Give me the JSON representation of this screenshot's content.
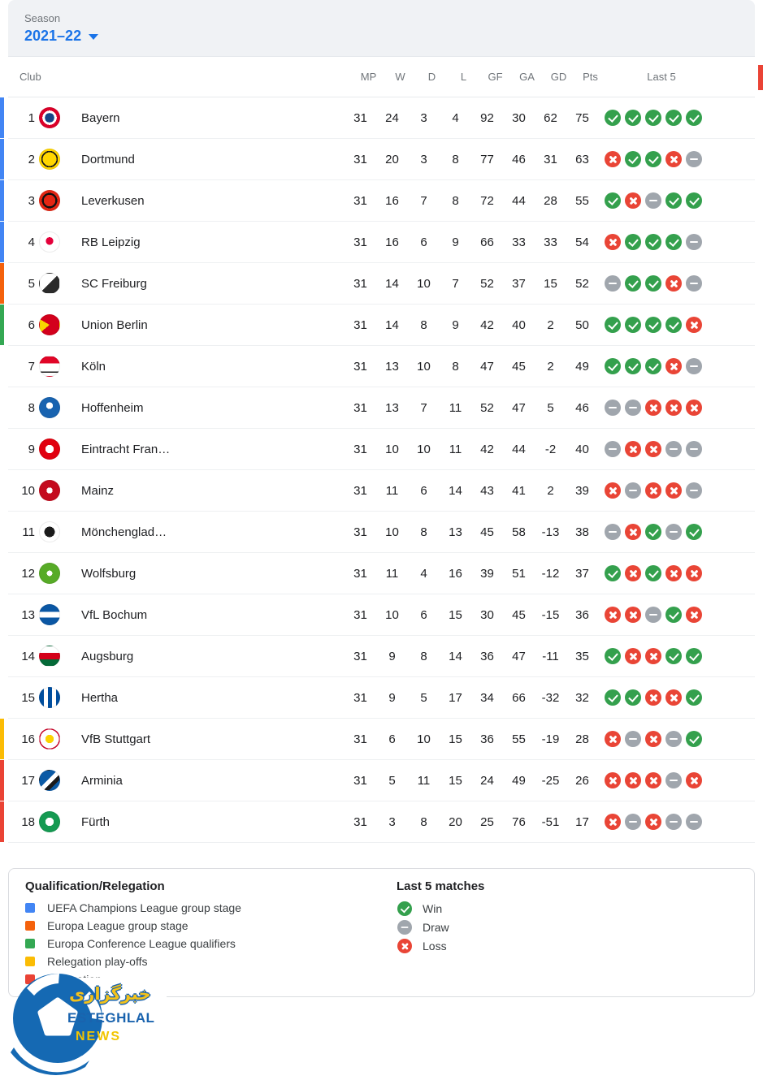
{
  "season": {
    "label": "Season",
    "value": "2021–22"
  },
  "table": {
    "columns": {
      "club": "Club",
      "mp": "MP",
      "w": "W",
      "d": "D",
      "l": "L",
      "gf": "GF",
      "ga": "GA",
      "gd": "GD",
      "pts": "Pts",
      "last5": "Last 5"
    },
    "rows": [
      {
        "rank": "1",
        "club": "Bayern",
        "logo": "bayern",
        "indicator": "ucl",
        "mp": "31",
        "w": "24",
        "d": "3",
        "l": "4",
        "gf": "92",
        "ga": "30",
        "gd": "62",
        "pts": "75",
        "last5": [
          "win",
          "win",
          "win",
          "win",
          "win"
        ]
      },
      {
        "rank": "2",
        "club": "Dortmund",
        "logo": "dortmund",
        "indicator": "ucl",
        "mp": "31",
        "w": "20",
        "d": "3",
        "l": "8",
        "gf": "77",
        "ga": "46",
        "gd": "31",
        "pts": "63",
        "last5": [
          "loss",
          "win",
          "win",
          "loss",
          "draw"
        ]
      },
      {
        "rank": "3",
        "club": "Leverkusen",
        "logo": "leverkusen",
        "indicator": "ucl",
        "mp": "31",
        "w": "16",
        "d": "7",
        "l": "8",
        "gf": "72",
        "ga": "44",
        "gd": "28",
        "pts": "55",
        "last5": [
          "win",
          "loss",
          "draw",
          "win",
          "win"
        ]
      },
      {
        "rank": "4",
        "club": "RB Leipzig",
        "logo": "leipzig",
        "indicator": "ucl",
        "mp": "31",
        "w": "16",
        "d": "6",
        "l": "9",
        "gf": "66",
        "ga": "33",
        "gd": "33",
        "pts": "54",
        "last5": [
          "loss",
          "win",
          "win",
          "win",
          "draw"
        ]
      },
      {
        "rank": "5",
        "club": "SC Freiburg",
        "logo": "freiburg",
        "indicator": "uel",
        "mp": "31",
        "w": "14",
        "d": "10",
        "l": "7",
        "gf": "52",
        "ga": "37",
        "gd": "15",
        "pts": "52",
        "last5": [
          "draw",
          "win",
          "win",
          "loss",
          "draw"
        ]
      },
      {
        "rank": "6",
        "club": "Union Berlin",
        "logo": "union",
        "indicator": "uecl",
        "mp": "31",
        "w": "14",
        "d": "8",
        "l": "9",
        "gf": "42",
        "ga": "40",
        "gd": "2",
        "pts": "50",
        "last5": [
          "win",
          "win",
          "win",
          "win",
          "loss"
        ]
      },
      {
        "rank": "7",
        "club": "Köln",
        "logo": "koln",
        "indicator": "none",
        "mp": "31",
        "w": "13",
        "d": "10",
        "l": "8",
        "gf": "47",
        "ga": "45",
        "gd": "2",
        "pts": "49",
        "last5": [
          "win",
          "win",
          "win",
          "loss",
          "draw"
        ]
      },
      {
        "rank": "8",
        "club": "Hoffenheim",
        "logo": "hoffenheim",
        "indicator": "none",
        "mp": "31",
        "w": "13",
        "d": "7",
        "l": "11",
        "gf": "52",
        "ga": "47",
        "gd": "5",
        "pts": "46",
        "last5": [
          "draw",
          "draw",
          "loss",
          "loss",
          "loss"
        ]
      },
      {
        "rank": "9",
        "club": "Eintracht Fran…",
        "logo": "frankfurt",
        "indicator": "none",
        "mp": "31",
        "w": "10",
        "d": "10",
        "l": "11",
        "gf": "42",
        "ga": "44",
        "gd": "-2",
        "pts": "40",
        "last5": [
          "draw",
          "loss",
          "loss",
          "draw",
          "draw"
        ]
      },
      {
        "rank": "10",
        "club": "Mainz",
        "logo": "mainz",
        "indicator": "none",
        "mp": "31",
        "w": "11",
        "d": "6",
        "l": "14",
        "gf": "43",
        "ga": "41",
        "gd": "2",
        "pts": "39",
        "last5": [
          "loss",
          "draw",
          "loss",
          "loss",
          "draw"
        ]
      },
      {
        "rank": "11",
        "club": "Mönchenglad…",
        "logo": "gladbach",
        "indicator": "none",
        "mp": "31",
        "w": "10",
        "d": "8",
        "l": "13",
        "gf": "45",
        "ga": "58",
        "gd": "-13",
        "pts": "38",
        "last5": [
          "draw",
          "loss",
          "win",
          "draw",
          "win"
        ]
      },
      {
        "rank": "12",
        "club": "Wolfsburg",
        "logo": "wolfsburg",
        "indicator": "none",
        "mp": "31",
        "w": "11",
        "d": "4",
        "l": "16",
        "gf": "39",
        "ga": "51",
        "gd": "-12",
        "pts": "37",
        "last5": [
          "win",
          "loss",
          "win",
          "loss",
          "loss"
        ]
      },
      {
        "rank": "13",
        "club": "VfL Bochum",
        "logo": "bochum",
        "indicator": "none",
        "mp": "31",
        "w": "10",
        "d": "6",
        "l": "15",
        "gf": "30",
        "ga": "45",
        "gd": "-15",
        "pts": "36",
        "last5": [
          "loss",
          "loss",
          "draw",
          "win",
          "loss"
        ]
      },
      {
        "rank": "14",
        "club": "Augsburg",
        "logo": "augsburg",
        "indicator": "none",
        "mp": "31",
        "w": "9",
        "d": "8",
        "l": "14",
        "gf": "36",
        "ga": "47",
        "gd": "-11",
        "pts": "35",
        "last5": [
          "win",
          "loss",
          "loss",
          "win",
          "win"
        ]
      },
      {
        "rank": "15",
        "club": "Hertha",
        "logo": "hertha",
        "indicator": "none",
        "mp": "31",
        "w": "9",
        "d": "5",
        "l": "17",
        "gf": "34",
        "ga": "66",
        "gd": "-32",
        "pts": "32",
        "last5": [
          "win",
          "win",
          "loss",
          "loss",
          "win"
        ]
      },
      {
        "rank": "16",
        "club": "VfB Stuttgart",
        "logo": "stuttgart",
        "indicator": "playoff",
        "mp": "31",
        "w": "6",
        "d": "10",
        "l": "15",
        "gf": "36",
        "ga": "55",
        "gd": "-19",
        "pts": "28",
        "last5": [
          "loss",
          "draw",
          "loss",
          "draw",
          "win"
        ]
      },
      {
        "rank": "17",
        "club": "Arminia",
        "logo": "arminia",
        "indicator": "relegation",
        "mp": "31",
        "w": "5",
        "d": "11",
        "l": "15",
        "gf": "24",
        "ga": "49",
        "gd": "-25",
        "pts": "26",
        "last5": [
          "loss",
          "loss",
          "loss",
          "draw",
          "loss"
        ]
      },
      {
        "rank": "18",
        "club": "Fürth",
        "logo": "fuerth",
        "indicator": "relegation",
        "mp": "31",
        "w": "3",
        "d": "8",
        "l": "20",
        "gf": "25",
        "ga": "76",
        "gd": "-51",
        "pts": "17",
        "last5": [
          "loss",
          "draw",
          "loss",
          "draw",
          "draw"
        ]
      }
    ]
  },
  "legend": {
    "title": "Qualification/Relegation",
    "items": [
      {
        "label": "UEFA Champions League group stage",
        "color": "#4285f4"
      },
      {
        "label": "Europa League group stage",
        "color": "#f4610c"
      },
      {
        "label": "Europa Conference League qualifiers",
        "color": "#34a853"
      },
      {
        "label": "Relegation play-offs",
        "color": "#fbbc04"
      },
      {
        "label": "Relegation",
        "color": "#ea4335"
      }
    ]
  },
  "last5_legend": {
    "title": "Last 5 matches",
    "items": [
      {
        "type": "win",
        "label": "Win"
      },
      {
        "type": "draw",
        "label": "Draw"
      },
      {
        "type": "loss",
        "label": "Loss"
      }
    ]
  },
  "branding": {
    "agency_fa": "خبرگزاری",
    "name": "ESTEGHLAL",
    "news": "NEWS"
  },
  "colors": {
    "accent_blue": "#1a73e8",
    "win_green": "#34a04d",
    "draw_gray": "#a0a6ad",
    "loss_red": "#e94536",
    "ucl": "#4285f4",
    "uel": "#f4610c",
    "uecl": "#34a853",
    "playoff": "#fbbc04",
    "relegation": "#ea4335",
    "topbar_bg": "#f0f2f5"
  }
}
